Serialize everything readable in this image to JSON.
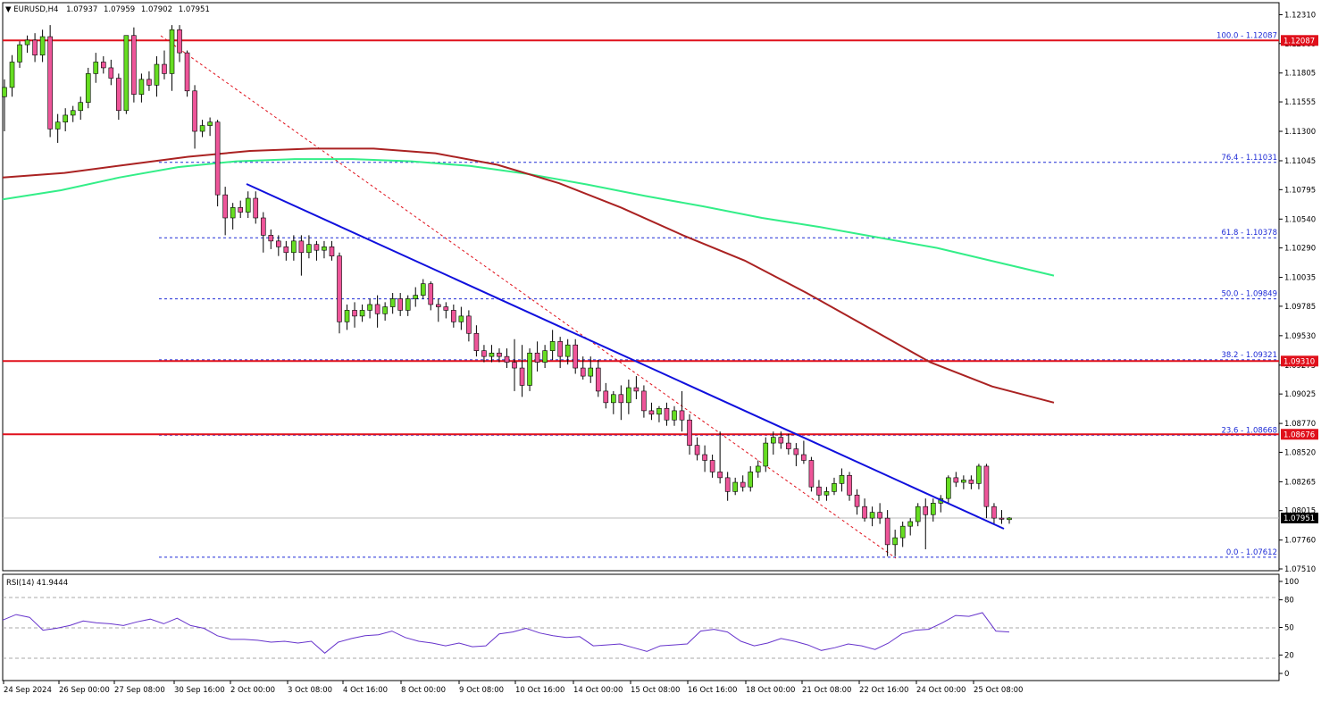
{
  "header": {
    "symbol": "EURUSD,H4",
    "open": "1.07937",
    "high": "1.07959",
    "low": "1.07902",
    "close": "1.07951"
  },
  "price_axis_labels": [
    "1.12310",
    "1.12060",
    "1.11805",
    "1.11555",
    "1.11300",
    "1.11045",
    "1.10795",
    "1.10540",
    "1.10290",
    "1.10035",
    "1.09785",
    "1.09530",
    "1.09275",
    "1.09025",
    "1.08770",
    "1.08520",
    "1.08265",
    "1.08015",
    "1.07760",
    "1.07510"
  ],
  "time_axis_labels": [
    "24 Sep 2024",
    "26 Sep 00:00",
    "27 Sep 08:00",
    "30 Sep 16:00",
    "2 Oct 00:00",
    "3 Oct 08:00",
    "4 Oct 16:00",
    "8 Oct 00:00",
    "9 Oct 08:00",
    "10 Oct 16:00",
    "14 Oct 00:00",
    "15 Oct 08:00",
    "16 Oct 16:00",
    "18 Oct 00:00",
    "21 Oct 08:00",
    "22 Oct 16:00",
    "24 Oct 00:00",
    "25 Oct 08:00"
  ],
  "fib_levels": [
    {
      "label": "100.0 - 1.12087",
      "price": 1.12087
    },
    {
      "label": "76.4 - 1.11031",
      "price": 1.11031
    },
    {
      "label": "61.8 - 1.10378",
      "price": 1.10378
    },
    {
      "label": "50.0 - 1.09849",
      "price": 1.09849
    },
    {
      "label": "38.2 - 1.09321",
      "price": 1.09321
    },
    {
      "label": "23.6 - 1.08668",
      "price": 1.08668
    },
    {
      "label": "0.0 - 1.07612",
      "price": 1.07612
    }
  ],
  "price_tags": [
    {
      "label": "1.12087",
      "price": 1.12087,
      "color": "#e0101b"
    },
    {
      "label": "1.09310",
      "price": 1.0931,
      "color": "#e0101b"
    },
    {
      "label": "1.08676",
      "price": 1.08676,
      "color": "#e0101b"
    },
    {
      "label": "1.07951",
      "price": 1.07951,
      "color": "#000000"
    }
  ],
  "rsi": {
    "label": "RSI(14) 41.9444",
    "axis_labels": [
      "100",
      "80",
      "50",
      "20",
      "0"
    ]
  },
  "colors": {
    "bull_candle": "#66dd22",
    "bear_candle": "#ee5599",
    "candle_outline": "#000000",
    "ma_green": "#33ee88",
    "ma_brown": "#aa2222",
    "trendline": "#1010dd",
    "resistance": "#e0101b",
    "fib": "#1e2bd6",
    "rsi_line": "#6633cc"
  },
  "chart_data": {
    "type": "line",
    "title": "EURUSD,H4",
    "description_series": "4-hour candlesticks",
    "ylim": [
      1.0751,
      1.1236
    ],
    "rsi_ylim": [
      0,
      100
    ],
    "horizontal_lines": [
      1.12087,
      1.0931,
      1.08676
    ],
    "last_price": 1.07951,
    "series": [
      {
        "name": "candles",
        "values": [
          [
            1.116,
            1.1175,
            1.113,
            1.1168
          ],
          [
            1.1168,
            1.1196,
            1.116,
            1.119
          ],
          [
            1.119,
            1.1208,
            1.1185,
            1.1205
          ],
          [
            1.1205,
            1.1213,
            1.1198,
            1.1209
          ],
          [
            1.1209,
            1.1215,
            1.119,
            1.1196
          ],
          [
            1.1196,
            1.1218,
            1.119,
            1.1212
          ],
          [
            1.1212,
            1.1222,
            1.1125,
            1.1132
          ],
          [
            1.1132,
            1.1145,
            1.112,
            1.1138
          ],
          [
            1.1138,
            1.115,
            1.113,
            1.1144
          ],
          [
            1.1144,
            1.1152,
            1.1138,
            1.1148
          ],
          [
            1.1148,
            1.116,
            1.114,
            1.1155
          ],
          [
            1.1155,
            1.1185,
            1.115,
            1.118
          ],
          [
            1.118,
            1.1198,
            1.1172,
            1.119
          ],
          [
            1.119,
            1.1195,
            1.118,
            1.1185
          ],
          [
            1.1185,
            1.1192,
            1.117,
            1.1176
          ],
          [
            1.1176,
            1.118,
            1.114,
            1.1148
          ],
          [
            1.1148,
            1.12,
            1.1145,
            1.1213
          ],
          [
            1.1213,
            1.122,
            1.1155,
            1.1162
          ],
          [
            1.1162,
            1.118,
            1.1155,
            1.1175
          ],
          [
            1.1175,
            1.1182,
            1.1165,
            1.117
          ],
          [
            1.117,
            1.1195,
            1.116,
            1.1188
          ],
          [
            1.1188,
            1.12,
            1.1175,
            1.118
          ],
          [
            1.118,
            1.1222,
            1.1165,
            1.1218
          ],
          [
            1.1218,
            1.1222,
            1.119,
            1.1198
          ],
          [
            1.1198,
            1.12,
            1.116,
            1.1165
          ],
          [
            1.1165,
            1.117,
            1.1115,
            1.113
          ],
          [
            1.113,
            1.114,
            1.1125,
            1.1135
          ],
          [
            1.1135,
            1.1142,
            1.1126,
            1.1138
          ],
          [
            1.1138,
            1.114,
            1.1065,
            1.1075
          ],
          [
            1.1075,
            1.1082,
            1.104,
            1.1055
          ],
          [
            1.1055,
            1.1068,
            1.1045,
            1.1064
          ],
          [
            1.1064,
            1.107,
            1.1055,
            1.106
          ],
          [
            1.106,
            1.1078,
            1.1055,
            1.1072
          ],
          [
            1.1072,
            1.1078,
            1.105,
            1.1055
          ],
          [
            1.1055,
            1.106,
            1.1025,
            1.104
          ],
          [
            1.104,
            1.1045,
            1.1028,
            1.1035
          ],
          [
            1.1035,
            1.104,
            1.1022,
            1.103
          ],
          [
            1.103,
            1.1035,
            1.1018,
            1.1025
          ],
          [
            1.1025,
            1.104,
            1.1018,
            1.1035
          ],
          [
            1.1035,
            1.104,
            1.1005,
            1.1025
          ],
          [
            1.1025,
            1.104,
            1.102,
            1.1032
          ],
          [
            1.1032,
            1.1035,
            1.1018,
            1.1027
          ],
          [
            1.1027,
            1.1035,
            1.102,
            1.103
          ],
          [
            1.103,
            1.1035,
            1.1018,
            1.1022
          ],
          [
            1.1022,
            1.1025,
            1.0955,
            1.0965
          ],
          [
            1.0965,
            1.098,
            1.0958,
            1.0975
          ],
          [
            1.0975,
            1.0982,
            1.096,
            1.097
          ],
          [
            1.097,
            1.098,
            1.0965,
            1.0975
          ],
          [
            1.0975,
            1.0985,
            1.0968,
            1.098
          ],
          [
            1.098,
            1.0988,
            1.096,
            1.0972
          ],
          [
            1.0972,
            1.0982,
            1.0966,
            1.0978
          ],
          [
            1.0978,
            1.099,
            1.0972,
            1.0985
          ],
          [
            1.0985,
            1.099,
            1.097,
            1.0975
          ],
          [
            1.0975,
            1.0988,
            1.097,
            1.0985
          ],
          [
            1.0985,
            1.0995,
            1.0978,
            1.0988
          ],
          [
            1.0988,
            1.1002,
            1.0985,
            1.0998
          ],
          [
            1.0998,
            1.1,
            1.0975,
            1.098
          ],
          [
            1.098,
            1.0985,
            1.0965,
            1.0978
          ],
          [
            1.0978,
            1.0982,
            1.0968,
            1.0975
          ],
          [
            1.0975,
            1.098,
            1.096,
            1.0965
          ],
          [
            1.0965,
            1.0978,
            1.0958,
            1.097
          ],
          [
            1.097,
            1.0975,
            1.0948,
            1.0955
          ],
          [
            1.0955,
            1.0962,
            1.0935,
            1.094
          ],
          [
            1.094,
            1.0945,
            1.093,
            1.0935
          ],
          [
            1.0935,
            1.0945,
            1.093,
            1.0938
          ],
          [
            1.0938,
            1.0942,
            1.093,
            1.0935
          ],
          [
            1.0935,
            1.0942,
            1.0925,
            1.093
          ],
          [
            1.093,
            1.095,
            1.0905,
            1.0925
          ],
          [
            1.0925,
            1.0945,
            1.09,
            1.091
          ],
          [
            1.091,
            1.0942,
            1.0905,
            1.0938
          ],
          [
            1.0938,
            1.0948,
            1.0922,
            1.093
          ],
          [
            1.093,
            1.0945,
            1.0925,
            1.094
          ],
          [
            1.094,
            1.0958,
            1.0932,
            1.0948
          ],
          [
            1.0948,
            1.0952,
            1.0925,
            1.0935
          ],
          [
            1.0935,
            1.095,
            1.0928,
            1.0945
          ],
          [
            1.0945,
            1.095,
            1.092,
            1.0925
          ],
          [
            1.0925,
            1.0935,
            1.0915,
            1.0918
          ],
          [
            1.0918,
            1.0935,
            1.0912,
            1.0925
          ],
          [
            1.0925,
            1.0932,
            1.09,
            1.0905
          ],
          [
            1.0905,
            1.0912,
            1.089,
            1.0895
          ],
          [
            1.0895,
            1.0905,
            1.0885,
            1.0902
          ],
          [
            1.0902,
            1.091,
            1.088,
            1.0895
          ],
          [
            1.0895,
            1.0915,
            1.0885,
            1.0908
          ],
          [
            1.0908,
            1.0918,
            1.0898,
            1.0905
          ],
          [
            1.0905,
            1.091,
            1.0882,
            1.0888
          ],
          [
            1.0888,
            1.0895,
            1.088,
            1.0885
          ],
          [
            1.0885,
            1.0892,
            1.0878,
            1.089
          ],
          [
            1.089,
            1.0895,
            1.0875,
            1.088
          ],
          [
            1.088,
            1.0892,
            1.0875,
            1.0888
          ],
          [
            1.0888,
            1.0905,
            1.087,
            1.088
          ],
          [
            1.088,
            1.0885,
            1.085,
            1.0858
          ],
          [
            1.0858,
            1.0865,
            1.0845,
            1.085
          ],
          [
            1.085,
            1.0858,
            1.0835,
            1.0845
          ],
          [
            1.0845,
            1.085,
            1.083,
            1.0835
          ],
          [
            1.0835,
            1.087,
            1.0825,
            1.083
          ],
          [
            1.083,
            1.0835,
            1.081,
            1.0818
          ],
          [
            1.0818,
            1.083,
            1.0815,
            1.0826
          ],
          [
            1.0826,
            1.0832,
            1.0818,
            1.0822
          ],
          [
            1.0822,
            1.084,
            1.0818,
            1.0835
          ],
          [
            1.0835,
            1.0845,
            1.083,
            1.084
          ],
          [
            1.084,
            1.0865,
            1.0835,
            1.086
          ],
          [
            1.086,
            1.087,
            1.085,
            1.0865
          ],
          [
            1.0865,
            1.087,
            1.0855,
            1.086
          ],
          [
            1.086,
            1.0868,
            1.085,
            1.0855
          ],
          [
            1.0855,
            1.086,
            1.084,
            1.085
          ],
          [
            1.085,
            1.0862,
            1.0842,
            1.0845
          ],
          [
            1.0845,
            1.0848,
            1.0818,
            1.0822
          ],
          [
            1.0822,
            1.0828,
            1.081,
            1.0815
          ],
          [
            1.0815,
            1.0822,
            1.081,
            1.0818
          ],
          [
            1.0818,
            1.083,
            1.0815,
            1.0825
          ],
          [
            1.0825,
            1.0838,
            1.0818,
            1.0832
          ],
          [
            1.0832,
            1.0835,
            1.081,
            1.0815
          ],
          [
            1.0815,
            1.082,
            1.0798,
            1.0805
          ],
          [
            1.0805,
            1.0812,
            1.0792,
            1.0795
          ],
          [
            1.0795,
            1.0805,
            1.0788,
            1.08
          ],
          [
            1.08,
            1.0808,
            1.079,
            1.0795
          ],
          [
            1.0795,
            1.0802,
            1.0762,
            1.0772
          ],
          [
            1.0772,
            1.0785,
            1.0762,
            1.0778
          ],
          [
            1.0778,
            1.0792,
            1.077,
            1.0788
          ],
          [
            1.0788,
            1.0795,
            1.078,
            1.0792
          ],
          [
            1.0792,
            1.0808,
            1.0788,
            1.0805
          ],
          [
            1.0805,
            1.0812,
            1.0768,
            1.0798
          ],
          [
            1.0798,
            1.0812,
            1.0792,
            1.0808
          ],
          [
            1.0808,
            1.0815,
            1.08,
            1.0812
          ],
          [
            1.0812,
            1.0832,
            1.0808,
            1.083
          ],
          [
            1.083,
            1.0835,
            1.0822,
            1.0826
          ],
          [
            1.0826,
            1.0832,
            1.082,
            1.0828
          ],
          [
            1.0828,
            1.0832,
            1.082,
            1.0825
          ],
          [
            1.0825,
            1.0842,
            1.082,
            1.084
          ],
          [
            1.084,
            1.0842,
            1.0795,
            1.0805
          ],
          [
            1.0805,
            1.0808,
            1.079,
            1.0795
          ],
          [
            1.0795,
            1.0802,
            1.079,
            1.0794
          ],
          [
            1.07937,
            1.07959,
            1.07902,
            1.07951
          ]
        ]
      },
      {
        "name": "ma_green",
        "values": [
          1.1071,
          1.1079,
          1.109,
          1.1099,
          1.1104,
          1.1106,
          1.1106,
          1.1104,
          1.11,
          1.1093,
          1.1084,
          1.1074,
          1.1065,
          1.1055,
          1.1047,
          1.1038,
          1.1029,
          1.1017,
          1.1005
        ]
      },
      {
        "name": "ma_brown",
        "values": [
          1.109,
          1.1094,
          1.1101,
          1.1108,
          1.1113,
          1.1115,
          1.1115,
          1.1111,
          1.1101,
          1.1085,
          1.1064,
          1.104,
          1.1018,
          1.099,
          1.096,
          1.093,
          1.0909,
          1.0895
        ]
      },
      {
        "name": "rsi",
        "values": [
          58,
          64,
          61,
          47,
          49,
          52,
          57,
          55,
          54,
          52,
          56,
          59,
          54,
          60,
          52,
          49,
          41,
          37,
          37,
          36,
          34,
          35,
          33,
          35,
          22,
          34,
          38,
          41,
          42,
          46,
          39,
          35,
          33,
          30,
          33,
          29,
          30,
          43,
          45,
          49,
          44,
          41,
          39,
          40,
          30,
          31,
          32,
          28,
          24,
          30,
          31,
          32,
          46,
          48,
          45,
          35,
          30,
          33,
          38,
          35,
          31,
          25,
          28,
          32,
          30,
          26,
          33,
          43,
          47,
          48,
          55,
          63,
          62,
          66,
          46,
          45
        ]
      }
    ]
  }
}
